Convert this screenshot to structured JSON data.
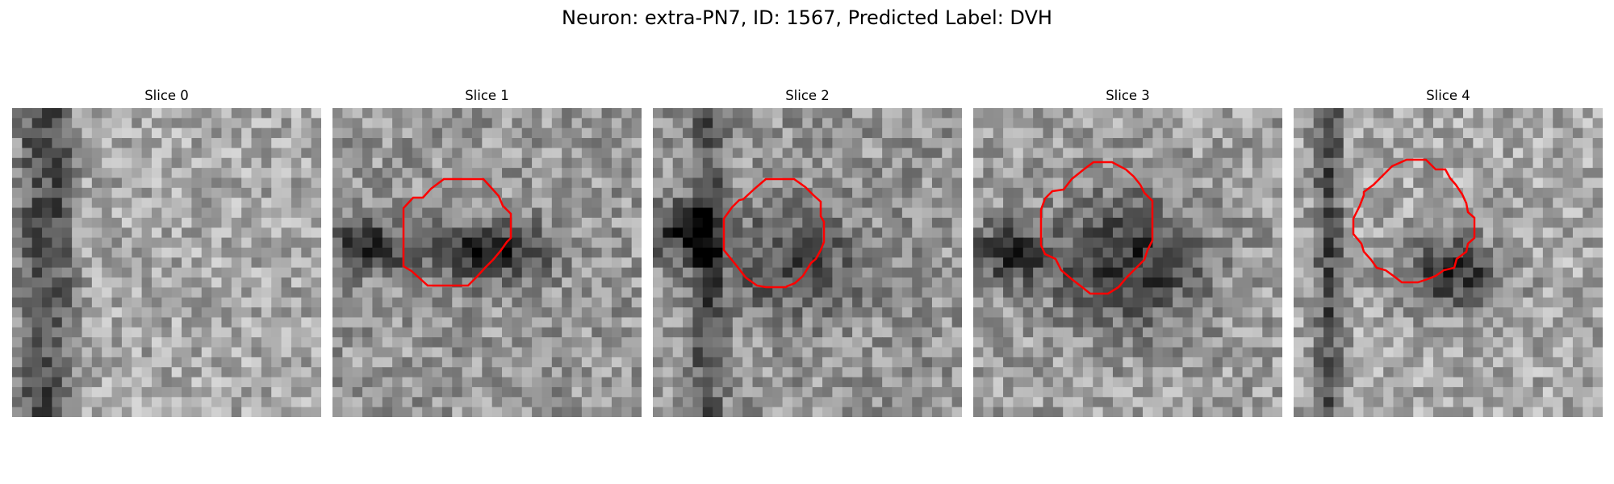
{
  "figure": {
    "title": "Neuron: extra-PN7, ID: 1567, Predicted Label: DVH"
  },
  "panels": [
    {
      "title": "Slice 0"
    },
    {
      "title": "Slice 1"
    },
    {
      "title": "Slice 2"
    },
    {
      "title": "Slice 3"
    },
    {
      "title": "Slice 4"
    }
  ],
  "colors": {
    "contour": "#ff0000",
    "background": "#ffffff"
  }
}
